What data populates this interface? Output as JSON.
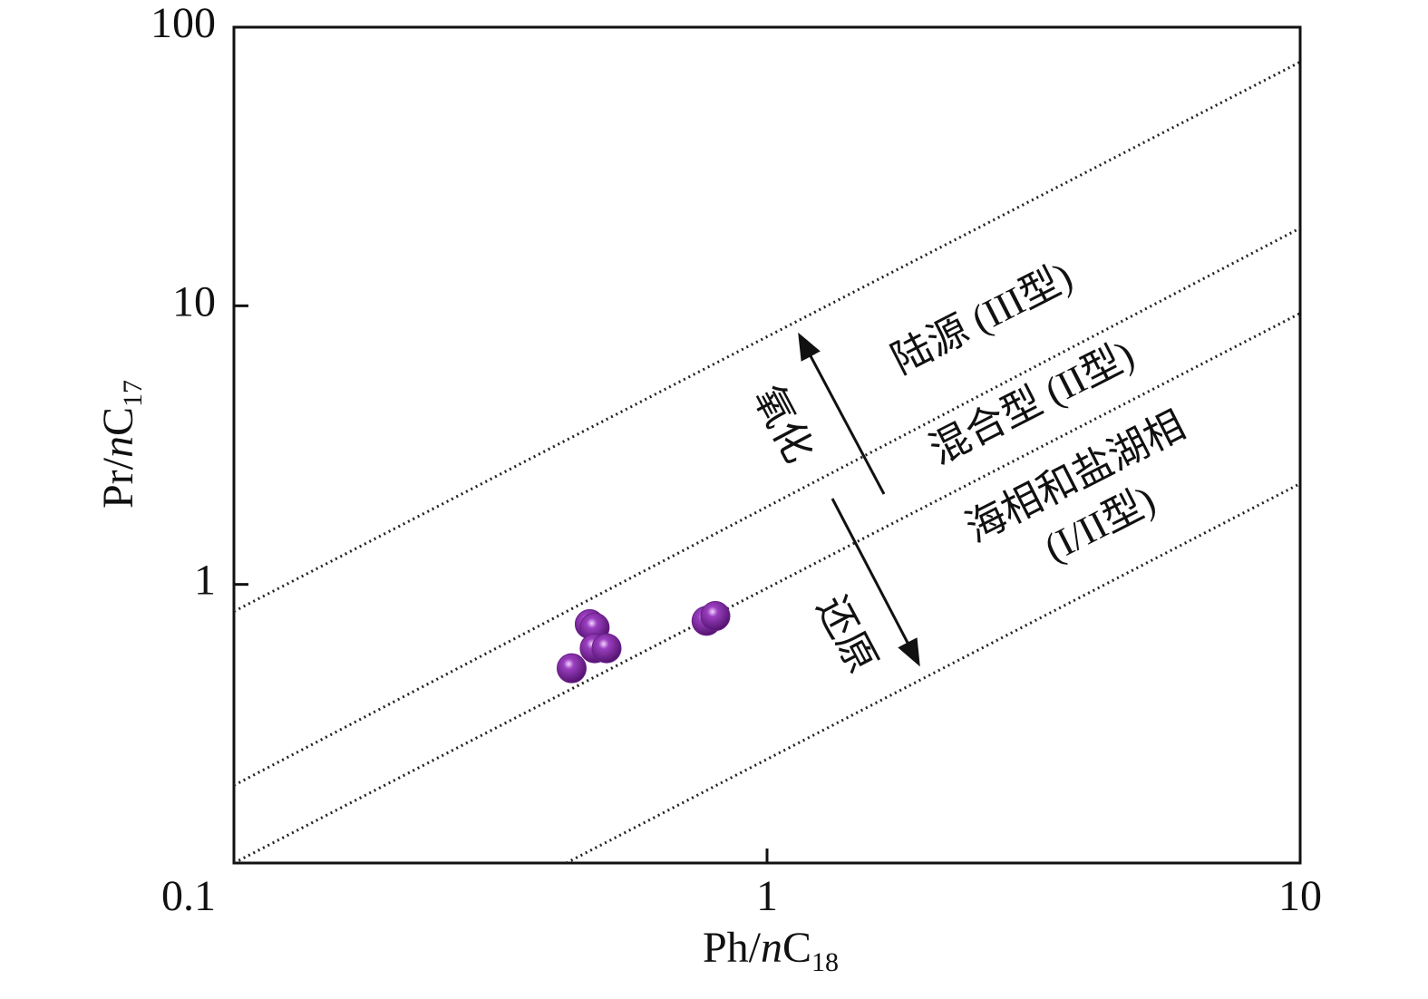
{
  "chart_data": {
    "type": "scatter",
    "xscale": "log",
    "yscale": "log",
    "xlabel_parts": [
      "Ph/",
      "n",
      "C",
      "18"
    ],
    "ylabel_parts": [
      "Pr/",
      "n",
      "C",
      "17"
    ],
    "xlim": [
      0.1,
      10
    ],
    "ylim": [
      0.1,
      100
    ],
    "xticks": [
      0.1,
      1,
      10
    ],
    "yticks": [
      1,
      10,
      100
    ],
    "x": [
      0.43,
      0.465,
      0.475,
      0.475,
      0.5,
      0.77,
      0.8
    ],
    "values": [
      0.5,
      0.72,
      0.7,
      0.59,
      0.59,
      0.74,
      0.77
    ],
    "color": "#6b1e8c",
    "reference_lines": [
      {
        "x": [
          0.1,
          10
        ],
        "y": [
          0.8,
          75
        ]
      },
      {
        "x": [
          0.1,
          10
        ],
        "y": [
          0.19,
          19
        ]
      },
      {
        "x": [
          0.1,
          10
        ],
        "y": [
          0.1,
          9.4
        ]
      },
      {
        "x": [
          0.42,
          10
        ],
        "y": [
          0.1,
          2.3
        ]
      }
    ],
    "annotations": [
      "陆源 (III型)",
      "混合型 (II型)",
      "海相和盐湖相",
      "(I/II型)",
      "氧化",
      "还原"
    ]
  }
}
